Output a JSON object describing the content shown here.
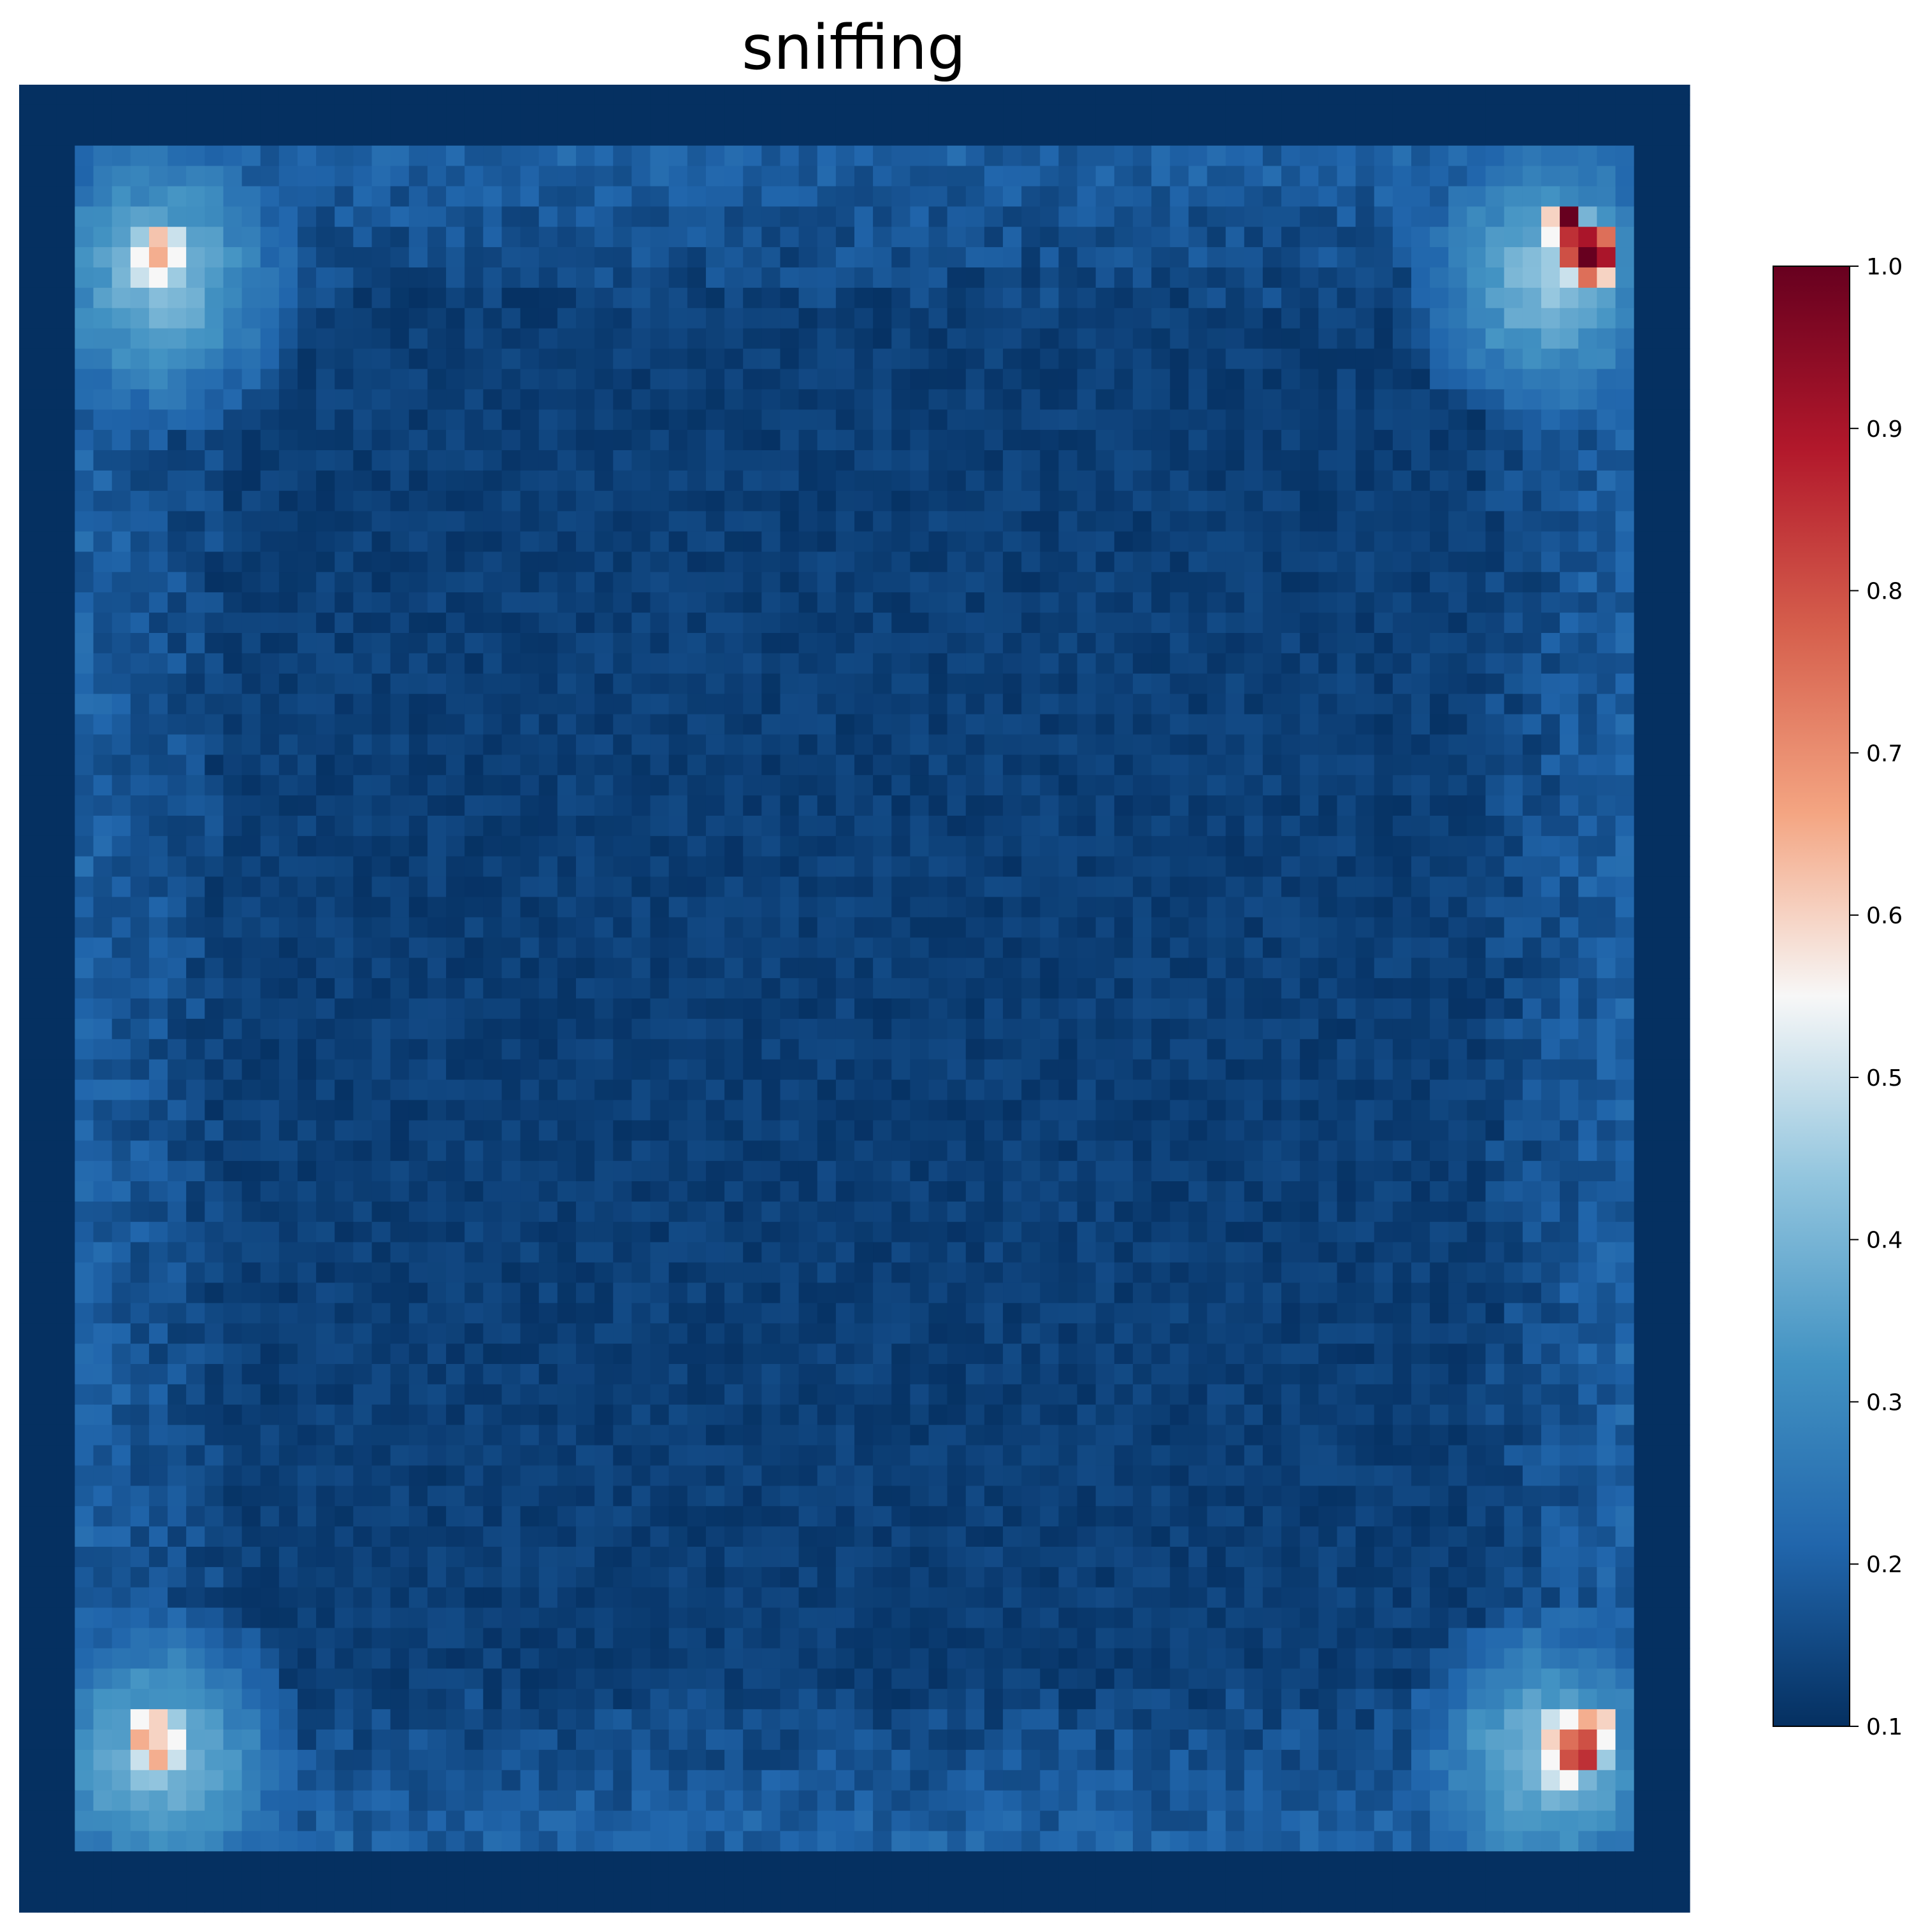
{
  "chart_data": {
    "type": "heatmap",
    "title": "sniffing",
    "xlabel": "",
    "ylabel": "",
    "colormap": "RdBu_r",
    "grid": false,
    "axes_visible": false,
    "legend": "none",
    "colorbar": {
      "placement": "right",
      "range": [
        0.1,
        1.0
      ],
      "ticks": [
        "0.1",
        "0.2",
        "0.3",
        "0.4",
        "0.5",
        "0.6",
        "0.7",
        "0.8",
        "0.9",
        "1.0"
      ]
    },
    "grid_shape": {
      "rows": 90,
      "cols": 90
    },
    "value_summary": {
      "background": 0.1,
      "interior": 0.13,
      "wall_band": 0.2,
      "top_left_corner_peak": 0.65,
      "top_right_corner_peak": 1.0,
      "bottom_left_corner_peak": 0.65,
      "bottom_right_corner_peak": 0.85
    },
    "hot_spots": [
      {
        "name": "top-left",
        "row": 7,
        "col": 6,
        "values": [
          [
            0.45,
            0.62,
            0.5
          ],
          [
            0.55,
            0.65,
            0.55
          ],
          [
            0.5,
            0.55,
            0.45
          ]
        ]
      },
      {
        "name": "top-right",
        "row": 6,
        "col": 82,
        "values": [
          [
            0.6,
            1.0,
            0.4,
            0.3
          ],
          [
            0.55,
            0.85,
            0.9,
            0.75
          ],
          [
            0.45,
            0.8,
            1.0,
            0.9
          ],
          [
            0.4,
            0.5,
            0.75,
            0.6
          ]
        ]
      },
      {
        "name": "bottom-left",
        "row": 80,
        "col": 6,
        "values": [
          [
            0.55,
            0.6,
            0.45
          ],
          [
            0.65,
            0.6,
            0.55
          ],
          [
            0.5,
            0.65,
            0.5
          ]
        ]
      },
      {
        "name": "bottom-right",
        "row": 80,
        "col": 82,
        "values": [
          [
            0.5,
            0.55,
            0.65,
            0.6
          ],
          [
            0.6,
            0.75,
            0.8,
            0.55
          ],
          [
            0.55,
            0.8,
            0.85,
            0.45
          ],
          [
            0.5,
            0.55,
            0.4,
            0.3
          ]
        ]
      }
    ]
  }
}
